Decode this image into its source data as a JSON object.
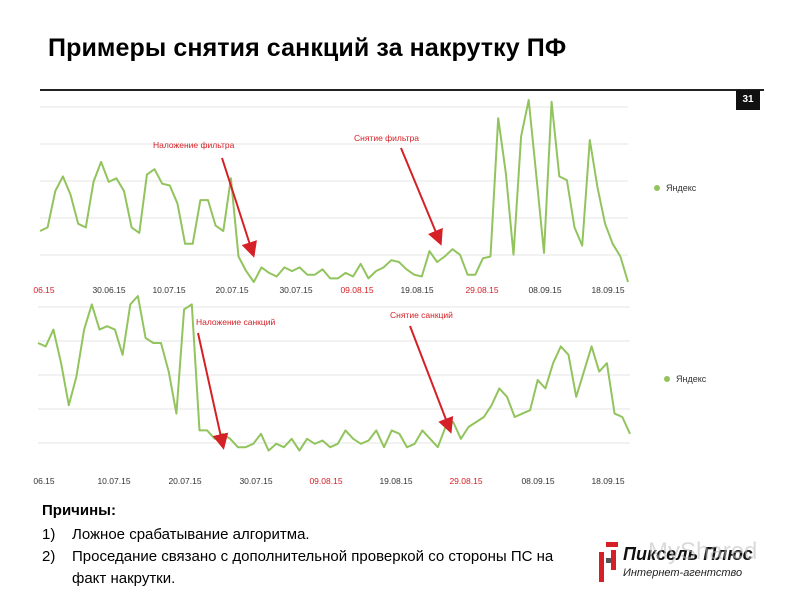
{
  "slide": {
    "title": "Примеры снятия санкций за накрутку ПФ",
    "page_number": "31"
  },
  "chart_data": [
    {
      "type": "line",
      "x_tick_labels": [
        "06.15",
        "30.06.15",
        "10.07.15",
        "20.07.15",
        "30.07.15",
        "09.08.15",
        "19.08.15",
        "29.08.15",
        "08.09.15",
        "18.09.15"
      ],
      "highlighted_ticks": [
        "06.15",
        "09.08.15",
        "29.08.15"
      ],
      "series": [
        {
          "name": "Яндекс",
          "values": [
            0.28,
            0.3,
            0.5,
            0.58,
            0.48,
            0.32,
            0.3,
            0.55,
            0.66,
            0.55,
            0.57,
            0.5,
            0.3,
            0.27,
            0.59,
            0.62,
            0.54,
            0.53,
            0.43,
            0.21,
            0.21,
            0.45,
            0.45,
            0.31,
            0.28,
            0.57,
            0.14,
            0.06,
            0.0,
            0.08,
            0.05,
            0.03,
            0.08,
            0.06,
            0.08,
            0.04,
            0.04,
            0.07,
            0.02,
            0.02,
            0.05,
            0.03,
            0.1,
            0.02,
            0.06,
            0.08,
            0.12,
            0.11,
            0.07,
            0.04,
            0.03,
            0.17,
            0.11,
            0.14,
            0.18,
            0.15,
            0.04,
            0.04,
            0.13,
            0.14,
            0.9,
            0.6,
            0.15,
            0.8,
            1.0,
            0.58,
            0.16,
            0.99,
            0.58,
            0.56,
            0.3,
            0.2,
            0.78,
            0.52,
            0.32,
            0.21,
            0.14,
            0.0
          ]
        }
      ],
      "annotations": [
        {
          "label": "Наложение фильтра",
          "x_index": 27
        },
        {
          "label": "Снятие фильтра",
          "x_index": 54
        }
      ],
      "legend_position": "right",
      "grid": true
    },
    {
      "type": "line",
      "x_tick_labels": [
        "06.15",
        "10.07.15",
        "20.07.15",
        "30.07.15",
        "09.08.15",
        "19.08.15",
        "29.08.15",
        "08.09.15",
        "18.09.15"
      ],
      "highlighted_ticks": [
        "09.08.15",
        "29.08.15"
      ],
      "series": [
        {
          "name": "Яндекс",
          "values": [
            0.72,
            0.7,
            0.8,
            0.6,
            0.35,
            0.52,
            0.8,
            0.95,
            0.8,
            0.82,
            0.8,
            0.65,
            0.95,
            1.0,
            0.75,
            0.72,
            0.72,
            0.55,
            0.3,
            0.92,
            0.95,
            0.2,
            0.2,
            0.15,
            0.18,
            0.15,
            0.1,
            0.1,
            0.12,
            0.18,
            0.08,
            0.12,
            0.1,
            0.15,
            0.08,
            0.15,
            0.12,
            0.14,
            0.1,
            0.12,
            0.2,
            0.15,
            0.12,
            0.14,
            0.2,
            0.1,
            0.2,
            0.18,
            0.1,
            0.12,
            0.2,
            0.15,
            0.1,
            0.22,
            0.25,
            0.15,
            0.22,
            0.25,
            0.28,
            0.35,
            0.45,
            0.4,
            0.28,
            0.3,
            0.32,
            0.5,
            0.45,
            0.6,
            0.7,
            0.65,
            0.4,
            0.55,
            0.7,
            0.55,
            0.6,
            0.3,
            0.28,
            0.18
          ]
        }
      ],
      "annotations": [
        {
          "label": "Наложение санкций",
          "x_index": 25
        },
        {
          "label": "Снятие санкций",
          "x_index": 55
        }
      ],
      "legend_position": "right",
      "grid": true
    }
  ],
  "reasons": {
    "heading": "Причины:",
    "items": [
      {
        "num": "1)",
        "text": "Ложное срабатывание алгоритма."
      },
      {
        "num": "2)",
        "text": "Проседание связано с дополнительной проверкой со стороны ПС на факт накрутки."
      }
    ]
  },
  "logo": {
    "name": "Пиксель Плюс",
    "subtitle": "Интернет-агентство"
  },
  "watermark": "MyShared",
  "colors": {
    "line": "#92c45e",
    "arrow": "#d42026",
    "annotation_text": "#d42026",
    "highlight_tick": "#d42026",
    "tick": "#333333",
    "grid": "#e6e6e6",
    "logo_red": "#d42026"
  }
}
